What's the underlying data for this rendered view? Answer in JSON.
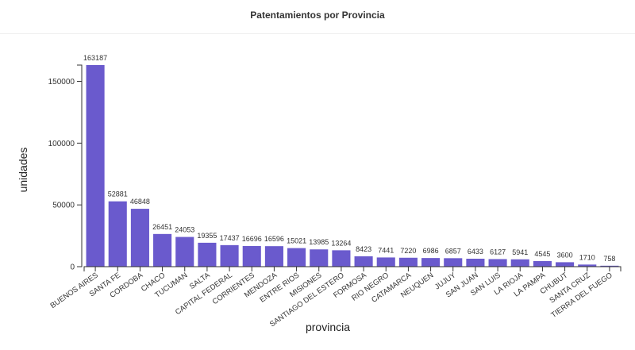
{
  "chart_data": {
    "type": "bar",
    "title": "Patentamientos por Provincia",
    "xlabel": "provincia",
    "ylabel": "unidades",
    "ylim": [
      0,
      163187
    ],
    "yticks": [
      0,
      50000,
      100000,
      150000
    ],
    "grid": false,
    "bar_color": "#6a5acd",
    "categories": [
      "BUENOS AIRES",
      "SANTA FE",
      "CORDOBA",
      "CHACO",
      "TUCUMAN",
      "SALTA",
      "CAPITAL FEDERAL",
      "CORRIENTES",
      "MENDOZA",
      "ENTRE RIOS",
      "MISIONES",
      "SANTIAGO DEL ESTERO",
      "FORMOSA",
      "RIO NEGRO",
      "CATAMARCA",
      "NEUQUEN",
      "JUJUY",
      "SAN JUAN",
      "SAN LUIS",
      "LA RIOJA",
      "LA PAMPA",
      "CHUBUT",
      "SANTA CRUZ",
      "TIERRA DEL FUEGO"
    ],
    "values": [
      163187,
      52881,
      46848,
      26451,
      24053,
      19355,
      17437,
      16696,
      16596,
      15021,
      13985,
      13264,
      8423,
      7441,
      7220,
      6986,
      6857,
      6433,
      6127,
      5941,
      4545,
      3600,
      1710,
      758
    ]
  }
}
